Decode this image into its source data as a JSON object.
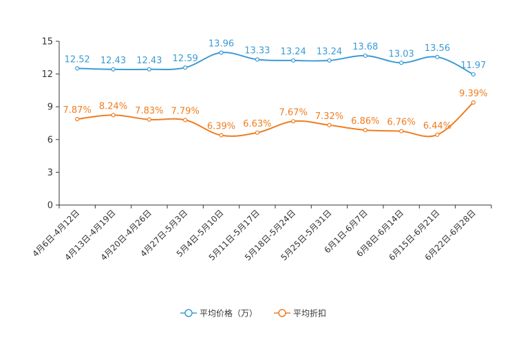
{
  "chart_data": {
    "type": "line",
    "categories": [
      "4月6日-4月12日",
      "4月13日-4月19日",
      "4月20日-4月26日",
      "4月27日-5月3日",
      "5月4日-5月10日",
      "5月11日-5月17日",
      "5月18日-5月24日",
      "5月25日-5月31日",
      "6月1日-6月7日",
      "6月8日-6月14日",
      "6月15日-6月21日",
      "6月22日-6月28日"
    ],
    "series": [
      {
        "name": "平均价格（万）",
        "color": "#3a9bd5",
        "values": [
          12.52,
          12.43,
          12.43,
          12.59,
          13.96,
          13.33,
          13.24,
          13.24,
          13.68,
          13.03,
          13.56,
          11.97
        ],
        "labels": [
          "12.52",
          "12.43",
          "12.43",
          "12.59",
          "13.96",
          "13.33",
          "13.24",
          "13.24",
          "13.68",
          "13.03",
          "13.56",
          "11.97"
        ]
      },
      {
        "name": "平均折扣",
        "color": "#f07c1e",
        "values": [
          7.87,
          8.24,
          7.83,
          7.79,
          6.39,
          6.63,
          7.67,
          7.32,
          6.86,
          6.76,
          6.44,
          9.39
        ],
        "labels": [
          "7.87%",
          "8.24%",
          "7.83%",
          "7.79%",
          "6.39%",
          "6.63%",
          "7.67%",
          "7.32%",
          "6.86%",
          "6.76%",
          "6.44%",
          "9.39%"
        ]
      }
    ],
    "ylim": [
      0,
      15
    ],
    "yticks": [
      "0",
      "3",
      "6",
      "9",
      "12",
      "15"
    ],
    "ytick_values": [
      0,
      3,
      6,
      9,
      12,
      15
    ],
    "grid": false,
    "legend_position": "bottom-center",
    "title": "",
    "xlabel": "",
    "ylabel": ""
  }
}
